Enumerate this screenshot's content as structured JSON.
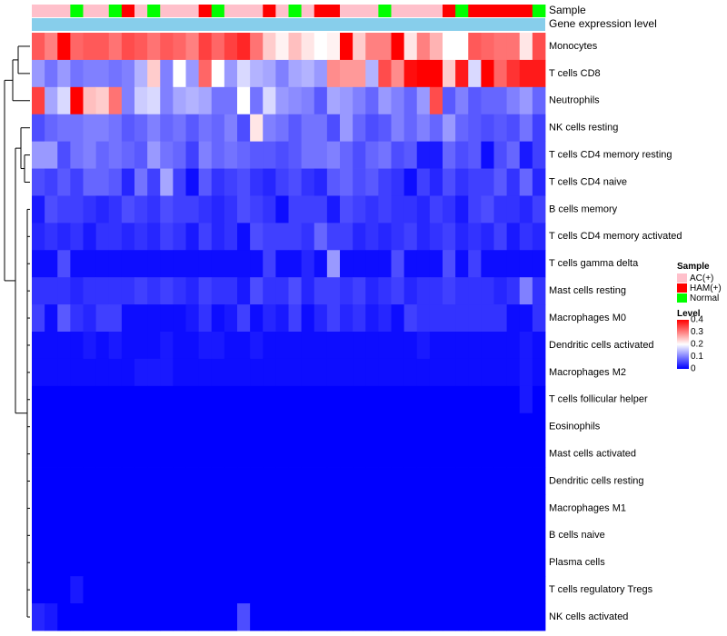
{
  "chart_data": {
    "type": "heatmap",
    "title": "",
    "annotation_labels": {
      "sample": "Sample",
      "gene": "Gene expression level"
    },
    "rows": [
      "Monocytes",
      "T cells CD8",
      "Neutrophils",
      "NK cells resting",
      "T cells CD4 memory resting",
      "T cells CD4 naive",
      "B cells memory",
      "T cells CD4 memory activated",
      "T cells gamma delta",
      "Mast cells resting",
      "Macrophages M0",
      "Dendritic cells activated",
      "Macrophages M2",
      "T cells follicular helper",
      "Eosinophils",
      "Mast cells activated",
      "Dendritic cells resting",
      "Macrophages M1",
      "B cells naive",
      "Plasma cells",
      "T cells regulatory  Tregs",
      "NK cells activated"
    ],
    "sample_groups": [
      "AC",
      "AC",
      "AC",
      "N",
      "AC",
      "AC",
      "N",
      "H",
      "AC",
      "N",
      "AC",
      "AC",
      "AC",
      "H",
      "N",
      "AC",
      "AC",
      "AC",
      "H",
      "AC",
      "N",
      "AC",
      "H",
      "H",
      "AC",
      "AC",
      "AC",
      "N",
      "AC",
      "AC",
      "AC",
      "AC",
      "H",
      "N",
      "H",
      "H",
      "H",
      "H",
      "H",
      "N"
    ],
    "gene_expression_row_color": "#87ceeb",
    "values": [
      [
        0.33,
        0.3,
        0.4,
        0.32,
        0.33,
        0.33,
        0.31,
        0.34,
        0.33,
        0.31,
        0.33,
        0.32,
        0.3,
        0.35,
        0.32,
        0.35,
        0.37,
        0.31,
        0.24,
        0.21,
        0.25,
        0.22,
        0.2,
        0.21,
        0.42,
        0.24,
        0.3,
        0.3,
        0.4,
        0.22,
        0.3,
        0.26,
        0.2,
        0.2,
        0.33,
        0.32,
        0.31,
        0.31,
        0.22,
        0.34
      ],
      [
        0.12,
        0.09,
        0.12,
        0.09,
        0.1,
        0.1,
        0.09,
        0.1,
        0.14,
        0.24,
        0.1,
        0.2,
        0.12,
        0.32,
        0.2,
        0.12,
        0.17,
        0.14,
        0.13,
        0.1,
        0.13,
        0.14,
        0.12,
        0.29,
        0.28,
        0.28,
        0.14,
        0.34,
        0.29,
        0.39,
        0.4,
        0.4,
        0.24,
        0.38,
        0.17,
        0.4,
        0.32,
        0.36,
        0.38,
        0.38
      ],
      [
        0.35,
        0.13,
        0.17,
        0.4,
        0.25,
        0.24,
        0.31,
        0.1,
        0.16,
        0.17,
        0.1,
        0.13,
        0.14,
        0.13,
        0.09,
        0.09,
        0.2,
        0.09,
        0.17,
        0.12,
        0.11,
        0.1,
        0.07,
        0.13,
        0.12,
        0.1,
        0.08,
        0.12,
        0.1,
        0.08,
        0.12,
        0.34,
        0.07,
        0.1,
        0.07,
        0.08,
        0.08,
        0.1,
        0.12,
        0.08
      ],
      [
        0.06,
        0.08,
        0.09,
        0.09,
        0.1,
        0.1,
        0.09,
        0.07,
        0.08,
        0.1,
        0.08,
        0.09,
        0.07,
        0.09,
        0.08,
        0.1,
        0.06,
        0.22,
        0.1,
        0.09,
        0.07,
        0.09,
        0.09,
        0.06,
        0.12,
        0.08,
        0.06,
        0.07,
        0.1,
        0.08,
        0.1,
        0.08,
        0.12,
        0.08,
        0.07,
        0.06,
        0.07,
        0.06,
        0.09,
        0.05
      ],
      [
        0.12,
        0.12,
        0.06,
        0.09,
        0.1,
        0.08,
        0.09,
        0.08,
        0.07,
        0.12,
        0.09,
        0.08,
        0.05,
        0.1,
        0.08,
        0.09,
        0.08,
        0.07,
        0.07,
        0.06,
        0.07,
        0.09,
        0.09,
        0.1,
        0.08,
        0.06,
        0.08,
        0.09,
        0.06,
        0.07,
        0.02,
        0.02,
        0.08,
        0.06,
        0.07,
        0.01,
        0.06,
        0.08,
        0.02,
        0.05
      ],
      [
        0.06,
        0.05,
        0.07,
        0.05,
        0.08,
        0.08,
        0.07,
        0.03,
        0.09,
        0.05,
        0.13,
        0.05,
        0.01,
        0.07,
        0.04,
        0.05,
        0.06,
        0.04,
        0.03,
        0.05,
        0.06,
        0.04,
        0.03,
        0.07,
        0.08,
        0.06,
        0.07,
        0.05,
        0.04,
        0.01,
        0.05,
        0.03,
        0.06,
        0.04,
        0.05,
        0.05,
        0.07,
        0.04,
        0.08,
        0.03
      ],
      [
        0.02,
        0.06,
        0.05,
        0.05,
        0.04,
        0.03,
        0.04,
        0.06,
        0.05,
        0.04,
        0.06,
        0.05,
        0.05,
        0.04,
        0.03,
        0.04,
        0.06,
        0.05,
        0.04,
        0.01,
        0.05,
        0.05,
        0.05,
        0.02,
        0.06,
        0.05,
        0.04,
        0.05,
        0.04,
        0.04,
        0.03,
        0.05,
        0.04,
        0.02,
        0.05,
        0.06,
        0.04,
        0.04,
        0.03,
        0.05
      ],
      [
        0.03,
        0.04,
        0.03,
        0.04,
        0.02,
        0.04,
        0.04,
        0.03,
        0.04,
        0.03,
        0.05,
        0.04,
        0.02,
        0.05,
        0.03,
        0.04,
        0.01,
        0.06,
        0.05,
        0.05,
        0.05,
        0.04,
        0.08,
        0.05,
        0.05,
        0.03,
        0.04,
        0.03,
        0.04,
        0.05,
        0.03,
        0.04,
        0.05,
        0.03,
        0.04,
        0.03,
        0.05,
        0.02,
        0.04,
        0.03
      ],
      [
        0.01,
        0.01,
        0.06,
        0.01,
        0.01,
        0.01,
        0.01,
        0.01,
        0.01,
        0.01,
        0.01,
        0.01,
        0.01,
        0.01,
        0.01,
        0.01,
        0.01,
        0.01,
        0.05,
        0.01,
        0.01,
        0.03,
        0.01,
        0.12,
        0.01,
        0.01,
        0.01,
        0.01,
        0.06,
        0.01,
        0.01,
        0.01,
        0.06,
        0.01,
        0.05,
        0.01,
        0.01,
        0.01,
        0.01,
        0.01
      ],
      [
        0.04,
        0.04,
        0.04,
        0.03,
        0.04,
        0.04,
        0.04,
        0.04,
        0.05,
        0.04,
        0.05,
        0.04,
        0.03,
        0.05,
        0.04,
        0.04,
        0.02,
        0.06,
        0.04,
        0.04,
        0.06,
        0.03,
        0.05,
        0.05,
        0.04,
        0.05,
        0.03,
        0.04,
        0.05,
        0.03,
        0.04,
        0.04,
        0.05,
        0.04,
        0.04,
        0.04,
        0.03,
        0.04,
        0.1,
        0.04
      ],
      [
        0.05,
        0.01,
        0.07,
        0.04,
        0.03,
        0.05,
        0.05,
        0.01,
        0.01,
        0.01,
        0.01,
        0.01,
        0.02,
        0.04,
        0.01,
        0.02,
        0.05,
        0.01,
        0.03,
        0.02,
        0.05,
        0.01,
        0.03,
        0.05,
        0.03,
        0.04,
        0.02,
        0.03,
        0.01,
        0.05,
        0.04,
        0.04,
        0.04,
        0.04,
        0.04,
        0.04,
        0.04,
        0.01,
        0.01,
        0.04
      ],
      [
        0.01,
        0.01,
        0.01,
        0.01,
        0.02,
        0.01,
        0.02,
        0.01,
        0.01,
        0.01,
        0.02,
        0.01,
        0.01,
        0.02,
        0.02,
        0.01,
        0.01,
        0.02,
        0.01,
        0.01,
        0.01,
        0.01,
        0.01,
        0.01,
        0.01,
        0.01,
        0.01,
        0.01,
        0.01,
        0.01,
        0.02,
        0.01,
        0.01,
        0.01,
        0.01,
        0.01,
        0.01,
        0.01,
        0.02,
        0.01
      ],
      [
        0.01,
        0.01,
        0.01,
        0.01,
        0.01,
        0.01,
        0.01,
        0.01,
        0.02,
        0.02,
        0.02,
        0.01,
        0.01,
        0.01,
        0.01,
        0.01,
        0.01,
        0.01,
        0.01,
        0.01,
        0.01,
        0.01,
        0.01,
        0.01,
        0.01,
        0.01,
        0.01,
        0.01,
        0.01,
        0.01,
        0.01,
        0.01,
        0.01,
        0.01,
        0.01,
        0.01,
        0.01,
        0.01,
        0.02,
        0.01
      ],
      [
        0.0,
        0.0,
        0.0,
        0.0,
        0.0,
        0.0,
        0.0,
        0.0,
        0.0,
        0.0,
        0.0,
        0.0,
        0.0,
        0.0,
        0.0,
        0.0,
        0.0,
        0.0,
        0.0,
        0.0,
        0.0,
        0.0,
        0.0,
        0.0,
        0.0,
        0.0,
        0.0,
        0.0,
        0.0,
        0.0,
        0.0,
        0.0,
        0.0,
        0.0,
        0.0,
        0.0,
        0.0,
        0.0,
        0.02,
        0.0
      ],
      [
        0.0,
        0.0,
        0.0,
        0.0,
        0.0,
        0.0,
        0.0,
        0.0,
        0.0,
        0.0,
        0.0,
        0.0,
        0.0,
        0.0,
        0.0,
        0.0,
        0.0,
        0.0,
        0.0,
        0.0,
        0.0,
        0.0,
        0.0,
        0.0,
        0.0,
        0.0,
        0.0,
        0.0,
        0.0,
        0.0,
        0.0,
        0.0,
        0.0,
        0.0,
        0.0,
        0.0,
        0.0,
        0.0,
        0.0,
        0.0
      ],
      [
        0.0,
        0.0,
        0.0,
        0.0,
        0.0,
        0.0,
        0.0,
        0.0,
        0.0,
        0.0,
        0.0,
        0.0,
        0.0,
        0.0,
        0.0,
        0.0,
        0.0,
        0.0,
        0.0,
        0.0,
        0.0,
        0.0,
        0.0,
        0.0,
        0.0,
        0.0,
        0.0,
        0.0,
        0.0,
        0.0,
        0.0,
        0.0,
        0.0,
        0.0,
        0.0,
        0.0,
        0.0,
        0.0,
        0.0,
        0.0
      ],
      [
        0.0,
        0.0,
        0.0,
        0.0,
        0.0,
        0.0,
        0.0,
        0.0,
        0.0,
        0.0,
        0.0,
        0.0,
        0.0,
        0.0,
        0.0,
        0.0,
        0.0,
        0.0,
        0.0,
        0.0,
        0.0,
        0.0,
        0.0,
        0.0,
        0.0,
        0.0,
        0.0,
        0.0,
        0.0,
        0.0,
        0.0,
        0.0,
        0.0,
        0.0,
        0.0,
        0.0,
        0.0,
        0.0,
        0.0,
        0.0
      ],
      [
        0.0,
        0.0,
        0.0,
        0.0,
        0.0,
        0.0,
        0.0,
        0.0,
        0.0,
        0.0,
        0.0,
        0.0,
        0.0,
        0.0,
        0.0,
        0.0,
        0.0,
        0.0,
        0.0,
        0.0,
        0.0,
        0.0,
        0.0,
        0.0,
        0.0,
        0.0,
        0.0,
        0.0,
        0.0,
        0.0,
        0.0,
        0.0,
        0.0,
        0.0,
        0.0,
        0.0,
        0.0,
        0.0,
        0.0,
        0.0
      ],
      [
        0.0,
        0.0,
        0.0,
        0.0,
        0.0,
        0.0,
        0.0,
        0.0,
        0.0,
        0.0,
        0.0,
        0.0,
        0.0,
        0.0,
        0.0,
        0.0,
        0.0,
        0.0,
        0.0,
        0.0,
        0.0,
        0.0,
        0.0,
        0.0,
        0.0,
        0.0,
        0.0,
        0.0,
        0.0,
        0.0,
        0.0,
        0.0,
        0.0,
        0.0,
        0.0,
        0.0,
        0.0,
        0.0,
        0.0,
        0.0
      ],
      [
        0.0,
        0.0,
        0.0,
        0.0,
        0.0,
        0.0,
        0.0,
        0.0,
        0.0,
        0.0,
        0.0,
        0.0,
        0.0,
        0.0,
        0.0,
        0.0,
        0.0,
        0.0,
        0.0,
        0.0,
        0.0,
        0.0,
        0.0,
        0.0,
        0.0,
        0.0,
        0.0,
        0.0,
        0.0,
        0.0,
        0.0,
        0.0,
        0.0,
        0.0,
        0.0,
        0.0,
        0.0,
        0.0,
        0.0,
        0.0
      ],
      [
        0.0,
        0.0,
        0.0,
        0.02,
        0.0,
        0.0,
        0.0,
        0.0,
        0.0,
        0.0,
        0.0,
        0.0,
        0.0,
        0.0,
        0.0,
        0.0,
        0.0,
        0.0,
        0.0,
        0.0,
        0.0,
        0.0,
        0.0,
        0.0,
        0.0,
        0.0,
        0.0,
        0.0,
        0.0,
        0.0,
        0.0,
        0.0,
        0.0,
        0.0,
        0.0,
        0.0,
        0.0,
        0.0,
        0.0,
        0.0
      ],
      [
        0.03,
        0.02,
        0.0,
        0.0,
        0.0,
        0.0,
        0.0,
        0.0,
        0.0,
        0.0,
        0.0,
        0.0,
        0.0,
        0.0,
        0.0,
        0.0,
        0.06,
        0.0,
        0.0,
        0.0,
        0.0,
        0.0,
        0.0,
        0.0,
        0.0,
        0.0,
        0.0,
        0.0,
        0.0,
        0.0,
        0.0,
        0.0,
        0.0,
        0.0,
        0.0,
        0.0,
        0.0,
        0.0,
        0.0,
        0.0
      ]
    ],
    "legend": {
      "sample_title": "Sample",
      "sample_items": [
        {
          "key": "AC",
          "label": "AC(+)",
          "color": "#ffc0cb"
        },
        {
          "key": "H",
          "label": "HAM(+)",
          "color": "#ff0000"
        },
        {
          "key": "N",
          "label": "Normal",
          "color": "#00ff00"
        }
      ],
      "level_title": "Level",
      "level_ticks": [
        0.4,
        0.3,
        0.2,
        0.1,
        0
      ],
      "level_tick_labels": [
        "0.4",
        "0.3",
        "0.2",
        "0.1",
        "0"
      ],
      "color_scale": {
        "low": "#0000ff",
        "mid": "#ffffff",
        "high": "#ff0000",
        "min": 0,
        "mid_value": 0.2,
        "max": 0.4
      }
    }
  }
}
